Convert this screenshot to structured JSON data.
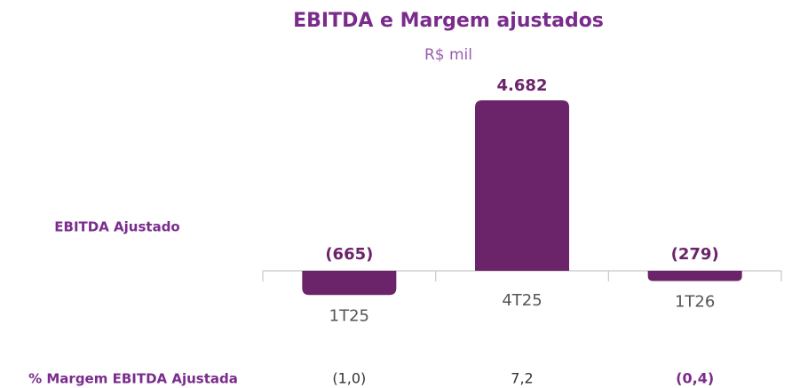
{
  "chart_data": {
    "type": "bar",
    "title": "EBITDA e Margem ajustados",
    "subtitle": "R$ mil",
    "row_label": "EBITDA Ajustado",
    "categories": [
      "1T25",
      "4T25",
      "1T26"
    ],
    "values": [
      -665,
      4682,
      -279
    ],
    "value_labels": [
      "(665)",
      "4.682",
      "(279)"
    ],
    "color": "#6b2369",
    "margin": {
      "label": "% Margem EBITDA Ajustada",
      "values": [
        -1.0,
        7.2,
        -0.4
      ],
      "value_labels": [
        "(1,0)",
        "7,2",
        "(0,4)"
      ]
    }
  }
}
